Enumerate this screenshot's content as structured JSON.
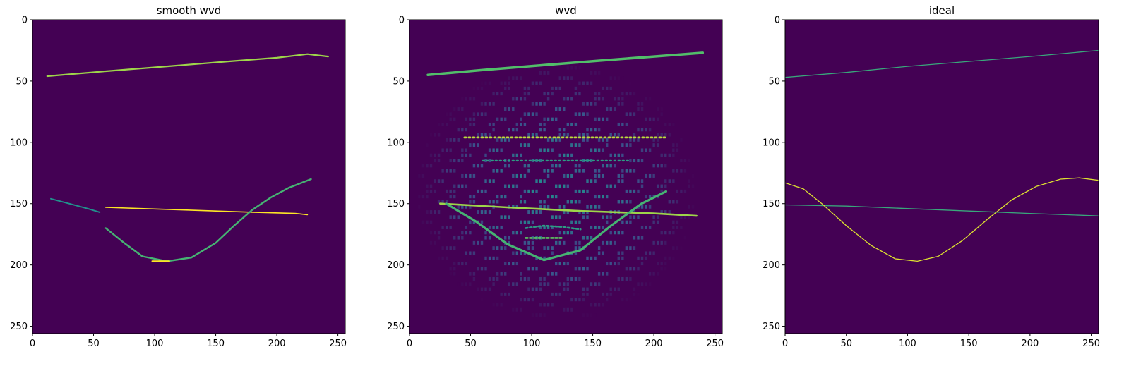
{
  "chart_data": [
    {
      "type": "heatmap",
      "title": "smooth wvd",
      "xlabel": "",
      "ylabel": "",
      "xlim": [
        0,
        256
      ],
      "ylim": [
        256,
        0
      ],
      "xticks": [
        0,
        50,
        100,
        150,
        200,
        250
      ],
      "yticks": [
        0,
        50,
        100,
        150,
        200,
        250
      ],
      "grid": false,
      "colormap": "viridis",
      "background_color": "#440154",
      "features": [
        {
          "kind": "line",
          "points": [
            [
              12,
              46
            ],
            [
              60,
              42
            ],
            [
              110,
              38
            ],
            [
              160,
              34
            ],
            [
              200,
              31
            ],
            [
              225,
              28
            ],
            [
              242,
              30
            ]
          ],
          "intensity": 0.85,
          "width": 2.2
        },
        {
          "kind": "line",
          "points": [
            [
              60,
              153
            ],
            [
              120,
              155
            ],
            [
              180,
              157
            ],
            [
              215,
              158
            ],
            [
              225,
              159
            ]
          ],
          "intensity": 1.0,
          "width": 1.6
        },
        {
          "kind": "line",
          "points": [
            [
              15,
              146
            ],
            [
              30,
              150
            ],
            [
              45,
              154
            ],
            [
              55,
              157
            ]
          ],
          "intensity": 0.5,
          "width": 2.0
        },
        {
          "kind": "line",
          "points": [
            [
              60,
              170
            ],
            [
              75,
              182
            ],
            [
              90,
              193
            ],
            [
              110,
              197
            ],
            [
              130,
              194
            ],
            [
              150,
              182
            ],
            [
              165,
              168
            ],
            [
              180,
              155
            ],
            [
              195,
              145
            ],
            [
              210,
              137
            ],
            [
              228,
              130
            ]
          ],
          "intensity": 0.65,
          "width": 2.4
        },
        {
          "kind": "line",
          "points": [
            [
              98,
              197
            ],
            [
              112,
              197
            ]
          ],
          "intensity": 1.0,
          "width": 2.2
        }
      ]
    },
    {
      "type": "heatmap",
      "title": "wvd",
      "xlabel": "",
      "ylabel": "",
      "xlim": [
        0,
        256
      ],
      "ylim": [
        256,
        0
      ],
      "xticks": [
        0,
        50,
        100,
        150,
        200,
        250
      ],
      "yticks": [
        0,
        50,
        100,
        150,
        200,
        250
      ],
      "grid": false,
      "colormap": "viridis",
      "background_color": "#440154",
      "features": [
        {
          "kind": "line",
          "points": [
            [
              15,
              45
            ],
            [
              60,
              41
            ],
            [
              110,
              37
            ],
            [
              160,
              33
            ],
            [
              200,
              30
            ],
            [
              240,
              27
            ]
          ],
          "intensity": 0.7,
          "width": 3.5
        },
        {
          "kind": "line",
          "points": [
            [
              45,
              96
            ],
            [
              100,
              96
            ],
            [
              160,
              96
            ],
            [
              210,
              96
            ]
          ],
          "intensity": 0.9,
          "width": 2.8,
          "dash": [
            2,
            4
          ]
        },
        {
          "kind": "line",
          "points": [
            [
              60,
              115
            ],
            [
              120,
              115
            ],
            [
              180,
              115
            ]
          ],
          "intensity": 0.55,
          "width": 2.4,
          "dash": [
            2,
            4
          ]
        },
        {
          "kind": "line",
          "points": [
            [
              25,
              150
            ],
            [
              80,
              153
            ],
            [
              140,
              156
            ],
            [
              200,
              158
            ],
            [
              235,
              160
            ]
          ],
          "intensity": 0.85,
          "width": 2.6
        },
        {
          "kind": "line",
          "points": [
            [
              30,
              150
            ],
            [
              55,
              165
            ],
            [
              80,
              183
            ],
            [
              110,
              196
            ],
            [
              140,
              188
            ],
            [
              165,
              168
            ],
            [
              190,
              150
            ],
            [
              210,
              140
            ]
          ],
          "intensity": 0.65,
          "width": 3.2
        },
        {
          "kind": "line",
          "points": [
            [
              95,
              170
            ],
            [
              110,
              168
            ],
            [
              125,
              169
            ],
            [
              140,
              171
            ]
          ],
          "intensity": 0.55,
          "width": 2.6,
          "dash": [
            3,
            3
          ]
        },
        {
          "kind": "line",
          "points": [
            [
              95,
              178
            ],
            [
              110,
              178
            ],
            [
              125,
              178
            ]
          ],
          "intensity": 0.75,
          "width": 2.6,
          "dash": [
            3,
            3
          ]
        }
      ],
      "interference_region": {
        "center": [
          120,
          140
        ],
        "radius": [
          115,
          105
        ],
        "intensity": 0.3
      }
    },
    {
      "type": "heatmap",
      "title": "ideal",
      "xlabel": "",
      "ylabel": "",
      "xlim": [
        0,
        256
      ],
      "ylim": [
        256,
        0
      ],
      "xticks": [
        0,
        50,
        100,
        150,
        200,
        250
      ],
      "yticks": [
        0,
        50,
        100,
        150,
        200,
        250
      ],
      "grid": false,
      "colormap": "viridis",
      "background_color": "#440154",
      "features": [
        {
          "kind": "line",
          "points": [
            [
              0,
              47
            ],
            [
              50,
              43
            ],
            [
              100,
              38
            ],
            [
              150,
              34
            ],
            [
              200,
              30
            ],
            [
              256,
              25
            ]
          ],
          "intensity": 0.6,
          "width": 1.3
        },
        {
          "kind": "line",
          "points": [
            [
              0,
              151
            ],
            [
              50,
              152
            ],
            [
              100,
              154
            ],
            [
              150,
              156
            ],
            [
              200,
              158
            ],
            [
              256,
              160
            ]
          ],
          "intensity": 0.6,
          "width": 1.3
        },
        {
          "kind": "line",
          "points": [
            [
              0,
              133
            ],
            [
              15,
              138
            ],
            [
              30,
              150
            ],
            [
              50,
              168
            ],
            [
              70,
              184
            ],
            [
              90,
              195
            ],
            [
              108,
              197
            ],
            [
              125,
              193
            ],
            [
              145,
              180
            ],
            [
              165,
              163
            ],
            [
              185,
              147
            ],
            [
              205,
              136
            ],
            [
              225,
              130
            ],
            [
              240,
              129
            ],
            [
              256,
              131
            ]
          ],
          "intensity": 0.95,
          "width": 1.3
        }
      ]
    }
  ]
}
